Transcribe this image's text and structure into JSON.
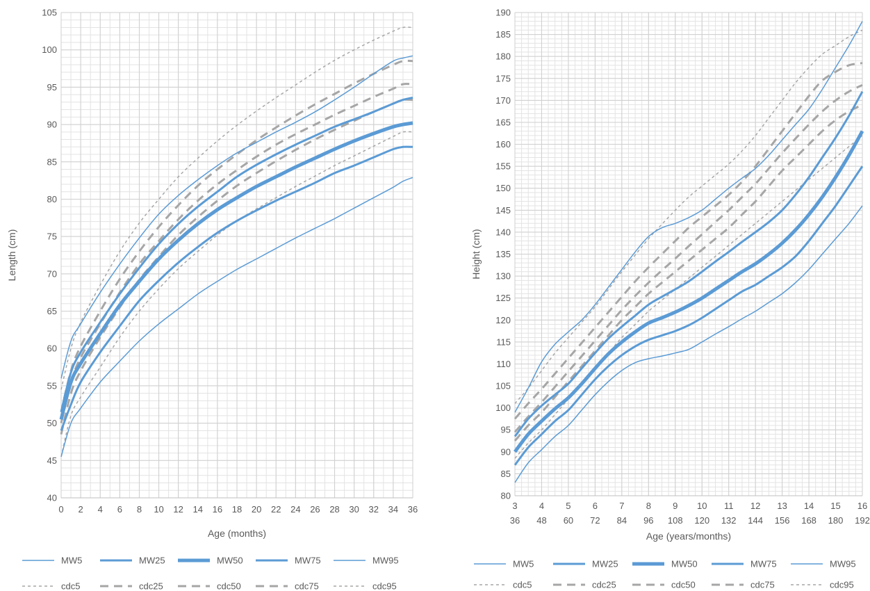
{
  "chart_data": [
    {
      "type": "line",
      "title": "",
      "xlabel": "Age (months)",
      "ylabel": "Length (cm)",
      "xlim": [
        0,
        36
      ],
      "ylim": [
        40,
        105
      ],
      "x_ticks": [
        "0",
        "2",
        "4",
        "6",
        "8",
        "10",
        "12",
        "14",
        "16",
        "18",
        "20",
        "22",
        "24",
        "26",
        "28",
        "30",
        "32",
        "34",
        "36"
      ],
      "y_ticks": [
        "40",
        "45",
        "50",
        "55",
        "60",
        "65",
        "70",
        "75",
        "80",
        "85",
        "90",
        "95",
        "100",
        "105"
      ],
      "grid": true,
      "legend_position": "bottom",
      "x": [
        0,
        1,
        2,
        4,
        6,
        8,
        10,
        12,
        14,
        16,
        18,
        20,
        22,
        24,
        26,
        28,
        30,
        32,
        34,
        35,
        36
      ],
      "series": [
        {
          "name": "MW5",
          "style": "solid",
          "weight": 1,
          "color": "#5B9BD5",
          "values": [
            45.5,
            50.0,
            52.0,
            55.5,
            58.3,
            61.0,
            63.3,
            65.3,
            67.3,
            69.0,
            70.6,
            72.0,
            73.4,
            74.8,
            76.1,
            77.4,
            78.8,
            80.2,
            81.6,
            82.4,
            82.9
          ]
        },
        {
          "name": "MW25",
          "style": "solid",
          "weight": 2,
          "color": "#5B9BD5",
          "values": [
            49.0,
            52.5,
            55.5,
            59.5,
            63.0,
            66.4,
            69.1,
            71.5,
            73.6,
            75.5,
            77.1,
            78.5,
            79.8,
            81.0,
            82.2,
            83.5,
            84.5,
            85.6,
            86.7,
            87.0,
            87.0
          ]
        },
        {
          "name": "MW50",
          "style": "solid",
          "weight": 3,
          "color": "#5B9BD5",
          "values": [
            50.5,
            55.5,
            58.0,
            62.0,
            65.8,
            69.0,
            72.0,
            74.5,
            76.7,
            78.6,
            80.2,
            81.7,
            83.0,
            84.3,
            85.5,
            86.7,
            87.8,
            88.8,
            89.7,
            90.0,
            90.2
          ]
        },
        {
          "name": "MW75",
          "style": "solid",
          "weight": 2,
          "color": "#5B9BD5",
          "values": [
            51.5,
            56.8,
            59.5,
            63.5,
            67.3,
            70.8,
            74.0,
            76.7,
            79.0,
            81.0,
            83.0,
            84.6,
            86.0,
            87.3,
            88.5,
            89.7,
            90.7,
            91.7,
            92.8,
            93.3,
            93.6
          ]
        },
        {
          "name": "MW95",
          "style": "solid",
          "weight": 1,
          "color": "#5B9BD5",
          "values": [
            56.0,
            61.0,
            63.3,
            67.5,
            71.3,
            74.8,
            78.0,
            80.5,
            82.6,
            84.5,
            86.2,
            87.6,
            89.0,
            90.3,
            91.7,
            93.3,
            95.0,
            96.8,
            98.5,
            98.9,
            99.2
          ]
        },
        {
          "name": "cdc5",
          "style": "dashed",
          "weight": 1,
          "color": "#A6A6A6",
          "values": [
            45.5,
            51.0,
            53.5,
            57.5,
            61.5,
            65.0,
            68.0,
            70.7,
            73.0,
            75.2,
            77.1,
            78.7,
            80.2,
            81.7,
            83.1,
            84.5,
            85.8,
            87.1,
            88.4,
            89.0,
            89.0
          ]
        },
        {
          "name": "cdc25",
          "style": "dashed",
          "weight": 2,
          "color": "#A6A6A6",
          "values": [
            48.5,
            54.0,
            57.0,
            61.5,
            65.5,
            69.2,
            72.3,
            75.2,
            77.6,
            79.8,
            81.8,
            83.5,
            85.1,
            86.6,
            88.0,
            89.3,
            90.5,
            91.7,
            92.8,
            93.3,
            93.3
          ]
        },
        {
          "name": "cdc50",
          "style": "dashed",
          "weight": 2,
          "color": "#A6A6A6",
          "values": [
            50.0,
            55.5,
            58.8,
            63.3,
            67.5,
            71.3,
            74.4,
            77.3,
            79.8,
            82.0,
            83.9,
            85.7,
            87.3,
            88.7,
            90.0,
            91.3,
            92.5,
            93.7,
            94.8,
            95.4,
            95.4
          ]
        },
        {
          "name": "cdc75",
          "style": "dashed",
          "weight": 2,
          "color": "#A6A6A6",
          "values": [
            51.5,
            57.0,
            60.3,
            65.0,
            69.3,
            73.0,
            76.3,
            79.2,
            81.8,
            84.0,
            86.0,
            87.9,
            89.6,
            91.2,
            92.7,
            94.1,
            95.5,
            96.8,
            98.0,
            98.5,
            98.5
          ]
        },
        {
          "name": "cdc95",
          "style": "dashed",
          "weight": 1,
          "color": "#A6A6A6",
          "values": [
            54.5,
            60.0,
            63.5,
            68.5,
            73.0,
            76.8,
            80.0,
            83.0,
            85.5,
            87.8,
            89.9,
            91.8,
            93.6,
            95.3,
            97.0,
            98.6,
            100.0,
            101.3,
            102.5,
            103.0,
            103.0
          ]
        }
      ]
    },
    {
      "type": "line",
      "title": "",
      "xlabel": "Age (years/months)",
      "ylabel": "Height (cm)",
      "xlim": [
        3,
        16
      ],
      "ylim": [
        80,
        190
      ],
      "x_ticks": [
        [
          "3",
          "36"
        ],
        [
          "4",
          "48"
        ],
        [
          "5",
          "60"
        ],
        [
          "6",
          "72"
        ],
        [
          "7",
          "84"
        ],
        [
          "8",
          "96"
        ],
        [
          "9",
          "108"
        ],
        [
          "10",
          "120"
        ],
        [
          "11",
          "132"
        ],
        [
          "12",
          "144"
        ],
        [
          "13",
          "156"
        ],
        [
          "14",
          "168"
        ],
        [
          "15",
          "180"
        ],
        [
          "16",
          "192"
        ]
      ],
      "y_ticks": [
        "80",
        "85",
        "90",
        "95",
        "100",
        "105",
        "110",
        "115",
        "120",
        "125",
        "130",
        "135",
        "140",
        "145",
        "150",
        "155",
        "160",
        "165",
        "170",
        "175",
        "180",
        "185",
        "190"
      ],
      "grid": true,
      "legend_position": "bottom",
      "x": [
        3,
        3.5,
        4,
        4.5,
        5,
        5.5,
        6,
        6.5,
        7,
        7.5,
        8,
        8.5,
        9,
        9.5,
        10,
        10.5,
        11,
        11.5,
        12,
        12.5,
        13,
        13.5,
        14,
        14.5,
        15,
        15.5,
        16
      ],
      "series": [
        {
          "name": "MW5",
          "style": "solid",
          "weight": 1,
          "color": "#5B9BD5",
          "values": [
            83.0,
            87.5,
            90.5,
            93.5,
            96.0,
            99.5,
            103.0,
            106.0,
            108.5,
            110.3,
            111.2,
            111.8,
            112.5,
            113.3,
            115.0,
            116.8,
            118.5,
            120.3,
            122.0,
            124.0,
            126.0,
            128.5,
            131.5,
            135.0,
            138.5,
            142.0,
            146.0
          ]
        },
        {
          "name": "MW25",
          "style": "solid",
          "weight": 2,
          "color": "#5B9BD5",
          "values": [
            87.0,
            91.0,
            94.0,
            97.0,
            99.5,
            103.0,
            106.5,
            109.5,
            112.0,
            114.0,
            115.5,
            116.5,
            117.5,
            118.8,
            120.5,
            122.5,
            124.5,
            126.5,
            128.0,
            130.0,
            132.0,
            134.5,
            138.0,
            142.0,
            146.0,
            150.5,
            155.0
          ]
        },
        {
          "name": "MW50",
          "style": "solid",
          "weight": 3,
          "color": "#5B9BD5",
          "values": [
            90.0,
            94.0,
            97.0,
            99.8,
            102.3,
            105.5,
            109.0,
            112.3,
            115.0,
            117.3,
            119.3,
            120.5,
            121.8,
            123.3,
            125.0,
            127.0,
            129.0,
            131.0,
            132.8,
            135.0,
            137.5,
            140.5,
            144.0,
            148.0,
            152.5,
            157.5,
            163.0
          ]
        },
        {
          "name": "MW75",
          "style": "solid",
          "weight": 2,
          "color": "#5B9BD5",
          "values": [
            93.5,
            97.5,
            100.5,
            103.0,
            105.5,
            109.0,
            112.5,
            115.8,
            118.5,
            121.0,
            123.5,
            125.3,
            127.0,
            128.8,
            131.0,
            133.3,
            135.5,
            137.8,
            140.0,
            142.3,
            145.0,
            148.5,
            152.5,
            157.0,
            161.5,
            166.5,
            172.0
          ]
        },
        {
          "name": "MW95",
          "style": "solid",
          "weight": 1,
          "color": "#5B9BD5",
          "values": [
            99.0,
            104.5,
            110.5,
            114.5,
            117.3,
            120.0,
            123.5,
            127.5,
            131.5,
            135.5,
            139.0,
            141.0,
            142.0,
            143.3,
            145.0,
            147.5,
            150.0,
            152.3,
            154.5,
            157.5,
            161.0,
            164.5,
            168.0,
            172.5,
            177.5,
            182.5,
            188.0
          ]
        },
        {
          "name": "cdc5",
          "style": "dashed",
          "weight": 1,
          "color": "#A6A6A6",
          "values": [
            88.5,
            92.0,
            95.0,
            98.5,
            102.0,
            105.5,
            109.0,
            112.5,
            116.0,
            119.0,
            122.0,
            124.5,
            127.0,
            129.5,
            132.0,
            134.5,
            137.0,
            139.5,
            142.0,
            144.5,
            147.0,
            149.5,
            152.0,
            154.5,
            157.0,
            159.5,
            162.0
          ]
        },
        {
          "name": "cdc25",
          "style": "dashed",
          "weight": 2,
          "color": "#A6A6A6",
          "values": [
            92.5,
            96.0,
            99.0,
            102.5,
            106.0,
            109.5,
            113.0,
            116.5,
            120.0,
            123.0,
            126.0,
            128.5,
            131.0,
            133.5,
            136.0,
            138.5,
            141.0,
            144.0,
            147.0,
            150.5,
            154.0,
            157.0,
            160.0,
            163.0,
            165.5,
            167.5,
            169.0
          ]
        },
        {
          "name": "cdc50",
          "style": "dashed",
          "weight": 2,
          "color": "#A6A6A6",
          "values": [
            94.5,
            98.0,
            101.3,
            104.8,
            108.3,
            111.8,
            115.3,
            118.8,
            122.3,
            125.5,
            128.5,
            131.3,
            134.0,
            136.8,
            139.5,
            142.3,
            145.0,
            148.0,
            151.0,
            154.5,
            158.0,
            161.3,
            164.5,
            167.5,
            170.0,
            172.0,
            173.5
          ]
        },
        {
          "name": "cdc75",
          "style": "dashed",
          "weight": 2,
          "color": "#A6A6A6",
          "values": [
            97.5,
            101.0,
            104.3,
            107.8,
            111.3,
            114.8,
            118.3,
            121.8,
            125.3,
            128.8,
            132.0,
            135.0,
            138.0,
            141.0,
            143.5,
            146.0,
            148.5,
            151.5,
            155.0,
            159.0,
            163.0,
            167.0,
            171.0,
            174.5,
            176.5,
            178.0,
            178.5
          ]
        },
        {
          "name": "cdc95",
          "style": "dashed",
          "weight": 1,
          "color": "#A6A6A6",
          "values": [
            101.0,
            104.5,
            108.5,
            112.5,
            116.0,
            119.5,
            123.0,
            127.0,
            131.0,
            134.8,
            138.5,
            141.8,
            145.0,
            148.0,
            150.5,
            153.0,
            155.5,
            158.5,
            162.0,
            166.0,
            170.0,
            174.0,
            177.5,
            180.5,
            182.5,
            184.5,
            186.0
          ]
        }
      ]
    }
  ]
}
